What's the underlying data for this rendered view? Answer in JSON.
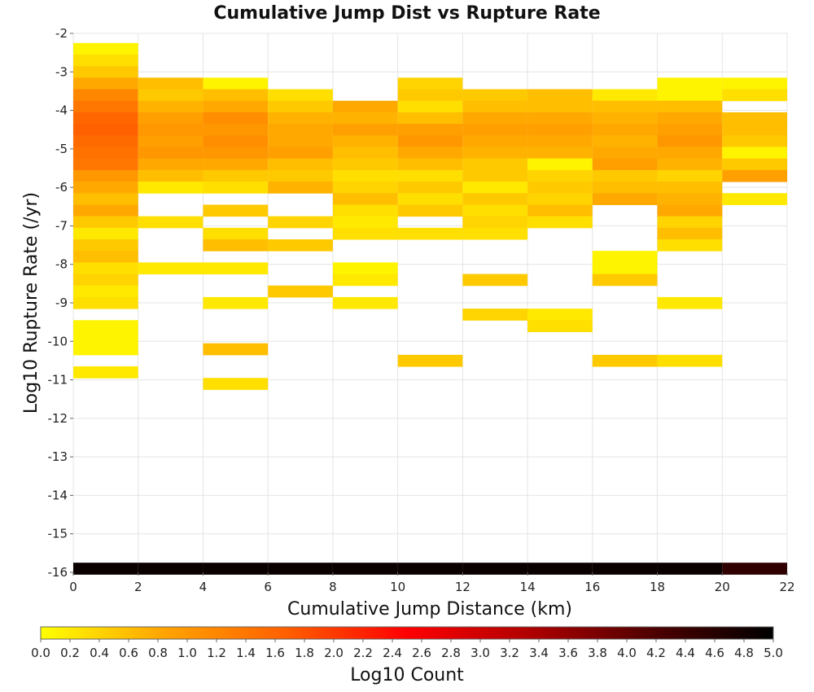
{
  "chart_data": {
    "type": "heatmap",
    "title": "Cumulative Jump Dist vs Rupture Rate",
    "xlabel": "Cumulative Jump Distance (km)",
    "ylabel": "Log10 Rupture Rate (/yr)",
    "xlim": [
      0,
      22
    ],
    "ylim": [
      -16,
      -2
    ],
    "x_ticks": [
      "0",
      "2",
      "4",
      "6",
      "8",
      "10",
      "12",
      "14",
      "16",
      "18",
      "20",
      "22"
    ],
    "y_ticks": [
      "-2",
      "-3",
      "-4",
      "-5",
      "-6",
      "-7",
      "-8",
      "-9",
      "-10",
      "-11",
      "-12",
      "-13",
      "-14",
      "-15",
      "-16"
    ],
    "grid": true,
    "bin_width_x": 2,
    "bin_height_y": 0.3,
    "colorbar": {
      "label": "Log10 Count",
      "min": 0.0,
      "max": 5.0,
      "ticks": [
        "0.0",
        "0.2",
        "0.4",
        "0.6",
        "0.8",
        "1.0",
        "1.2",
        "1.4",
        "1.6",
        "1.8",
        "2.0",
        "2.2",
        "2.4",
        "2.6",
        "2.8",
        "3.0",
        "3.2",
        "3.4",
        "3.6",
        "3.8",
        "4.0",
        "4.2",
        "4.4",
        "4.6",
        "4.8",
        "5.0"
      ],
      "stops": [
        "#ffff00",
        "#ffa500",
        "#ff6000",
        "#ff0000",
        "#b00000",
        "#500000",
        "#000000"
      ]
    },
    "columns": [
      {
        "x0": 0,
        "cells": [
          [
            -2.4,
            0.1
          ],
          [
            -2.7,
            0.3
          ],
          [
            -3.0,
            0.5
          ],
          [
            -3.3,
            0.8
          ],
          [
            -3.6,
            1.2
          ],
          [
            -3.9,
            1.4
          ],
          [
            -4.2,
            1.6
          ],
          [
            -4.5,
            1.65
          ],
          [
            -4.8,
            1.55
          ],
          [
            -5.1,
            1.45
          ],
          [
            -5.4,
            1.4
          ],
          [
            -5.7,
            1.0
          ],
          [
            -6.0,
            0.8
          ],
          [
            -6.3,
            0.6
          ],
          [
            -6.6,
            0.8
          ],
          [
            -6.9,
            0.5
          ],
          [
            -7.2,
            0.2
          ],
          [
            -7.5,
            0.5
          ],
          [
            -7.8,
            0.6
          ],
          [
            -8.1,
            0.3
          ],
          [
            -8.4,
            0.4
          ],
          [
            -8.7,
            0.2
          ],
          [
            -9.0,
            0.3
          ],
          [
            -9.6,
            0.1
          ],
          [
            -9.9,
            0.1
          ],
          [
            -10.2,
            0.1
          ],
          [
            -10.8,
            0.2
          ],
          [
            -15.9,
            4.9
          ]
        ]
      },
      {
        "x0": 2,
        "cells": [
          [
            -3.3,
            0.6
          ],
          [
            -3.6,
            0.5
          ],
          [
            -3.9,
            0.7
          ],
          [
            -4.2,
            0.9
          ],
          [
            -4.5,
            1.0
          ],
          [
            -4.8,
            0.9
          ],
          [
            -5.1,
            1.0
          ],
          [
            -5.4,
            0.8
          ],
          [
            -5.7,
            0.6
          ],
          [
            -6.0,
            0.2
          ],
          [
            -6.9,
            0.3
          ],
          [
            -8.1,
            0.2
          ],
          [
            -15.9,
            4.9
          ]
        ]
      },
      {
        "x0": 4,
        "cells": [
          [
            -3.3,
            0.1
          ],
          [
            -3.6,
            0.6
          ],
          [
            -3.9,
            0.8
          ],
          [
            -4.2,
            1.1
          ],
          [
            -4.5,
            1.0
          ],
          [
            -4.8,
            1.1
          ],
          [
            -5.1,
            1.0
          ],
          [
            -5.4,
            0.8
          ],
          [
            -5.7,
            0.5
          ],
          [
            -6.0,
            0.3
          ],
          [
            -6.6,
            0.5
          ],
          [
            -7.2,
            0.3
          ],
          [
            -7.5,
            0.6
          ],
          [
            -8.1,
            0.2
          ],
          [
            -9.0,
            0.2
          ],
          [
            -10.2,
            0.6
          ],
          [
            -11.1,
            0.3
          ],
          [
            -15.9,
            4.9
          ]
        ]
      },
      {
        "x0": 6,
        "cells": [
          [
            -3.6,
            0.3
          ],
          [
            -3.9,
            0.5
          ],
          [
            -4.2,
            0.7
          ],
          [
            -4.5,
            0.8
          ],
          [
            -4.8,
            0.8
          ],
          [
            -5.1,
            0.9
          ],
          [
            -5.4,
            0.6
          ],
          [
            -5.7,
            0.5
          ],
          [
            -6.0,
            0.7
          ],
          [
            -6.9,
            0.4
          ],
          [
            -7.5,
            0.5
          ],
          [
            -8.7,
            0.5
          ],
          [
            -15.9,
            4.9
          ]
        ]
      },
      {
        "x0": 8,
        "cells": [
          [
            -3.9,
            0.8
          ],
          [
            -4.2,
            0.7
          ],
          [
            -4.5,
            0.9
          ],
          [
            -4.8,
            0.7
          ],
          [
            -5.1,
            0.6
          ],
          [
            -5.4,
            0.5
          ],
          [
            -5.7,
            0.3
          ],
          [
            -6.0,
            0.4
          ],
          [
            -6.3,
            0.6
          ],
          [
            -6.6,
            0.3
          ],
          [
            -6.9,
            0.2
          ],
          [
            -7.2,
            0.3
          ],
          [
            -8.1,
            0.1
          ],
          [
            -8.4,
            0.2
          ],
          [
            -9.0,
            0.2
          ],
          [
            -15.9,
            4.9
          ]
        ]
      },
      {
        "x0": 10,
        "cells": [
          [
            -3.3,
            0.4
          ],
          [
            -3.6,
            0.5
          ],
          [
            -3.9,
            0.3
          ],
          [
            -4.2,
            0.6
          ],
          [
            -4.5,
            0.9
          ],
          [
            -4.8,
            1.0
          ],
          [
            -5.1,
            0.8
          ],
          [
            -5.4,
            0.6
          ],
          [
            -5.7,
            0.3
          ],
          [
            -6.0,
            0.5
          ],
          [
            -6.3,
            0.3
          ],
          [
            -6.6,
            0.5
          ],
          [
            -7.2,
            0.3
          ],
          [
            -10.5,
            0.5
          ],
          [
            -15.9,
            4.9
          ]
        ]
      },
      {
        "x0": 12,
        "cells": [
          [
            -3.6,
            0.5
          ],
          [
            -3.9,
            0.6
          ],
          [
            -4.2,
            0.8
          ],
          [
            -4.5,
            0.9
          ],
          [
            -4.8,
            0.8
          ],
          [
            -5.1,
            0.7
          ],
          [
            -5.4,
            0.5
          ],
          [
            -5.7,
            0.5
          ],
          [
            -6.0,
            0.2
          ],
          [
            -6.3,
            0.5
          ],
          [
            -6.6,
            0.3
          ],
          [
            -6.9,
            0.4
          ],
          [
            -7.2,
            0.3
          ],
          [
            -8.4,
            0.5
          ],
          [
            -9.3,
            0.4
          ],
          [
            -15.9,
            4.9
          ]
        ]
      },
      {
        "x0": 14,
        "cells": [
          [
            -3.6,
            0.6
          ],
          [
            -3.9,
            0.6
          ],
          [
            -4.2,
            0.8
          ],
          [
            -4.5,
            0.9
          ],
          [
            -4.8,
            0.8
          ],
          [
            -5.1,
            0.7
          ],
          [
            -5.4,
            0.1
          ],
          [
            -5.7,
            0.4
          ],
          [
            -6.0,
            0.5
          ],
          [
            -6.3,
            0.4
          ],
          [
            -6.6,
            0.6
          ],
          [
            -6.9,
            0.3
          ],
          [
            -9.3,
            0.2
          ],
          [
            -9.6,
            0.3
          ],
          [
            -15.9,
            4.9
          ]
        ]
      },
      {
        "x0": 16,
        "cells": [
          [
            -3.6,
            0.2
          ],
          [
            -3.9,
            0.6
          ],
          [
            -4.2,
            0.7
          ],
          [
            -4.5,
            0.8
          ],
          [
            -4.8,
            0.7
          ],
          [
            -5.1,
            0.8
          ],
          [
            -5.4,
            0.9
          ],
          [
            -5.7,
            0.5
          ],
          [
            -6.0,
            0.6
          ],
          [
            -6.3,
            0.8
          ],
          [
            -7.8,
            0.1
          ],
          [
            -8.1,
            0.1
          ],
          [
            -8.4,
            0.5
          ],
          [
            -10.5,
            0.5
          ],
          [
            -15.9,
            4.9
          ]
        ]
      },
      {
        "x0": 18,
        "cells": [
          [
            -3.3,
            0.1
          ],
          [
            -3.6,
            0.1
          ],
          [
            -3.9,
            0.6
          ],
          [
            -4.2,
            0.8
          ],
          [
            -4.5,
            0.9
          ],
          [
            -4.8,
            1.0
          ],
          [
            -5.1,
            0.8
          ],
          [
            -5.4,
            0.7
          ],
          [
            -5.7,
            0.4
          ],
          [
            -6.0,
            0.6
          ],
          [
            -6.3,
            0.7
          ],
          [
            -6.6,
            0.8
          ],
          [
            -6.9,
            0.4
          ],
          [
            -7.2,
            0.6
          ],
          [
            -7.5,
            0.3
          ],
          [
            -9.0,
            0.2
          ],
          [
            -10.5,
            0.3
          ],
          [
            -15.9,
            4.9
          ]
        ]
      },
      {
        "x0": 20,
        "cells": [
          [
            -3.3,
            0.1
          ],
          [
            -3.6,
            0.3
          ],
          [
            -4.2,
            0.6
          ],
          [
            -4.5,
            0.6
          ],
          [
            -4.8,
            0.5
          ],
          [
            -5.1,
            0.1
          ],
          [
            -5.4,
            0.5
          ],
          [
            -5.7,
            0.9
          ],
          [
            -6.3,
            0.2
          ],
          [
            -15.9,
            4.5
          ]
        ]
      }
    ]
  }
}
